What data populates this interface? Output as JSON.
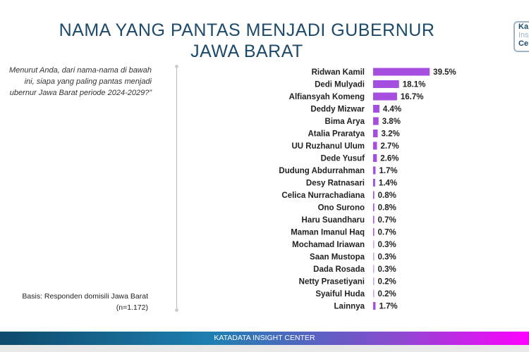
{
  "title_line1": "NAMA YANG PANTAS MENJADI GUBERNUR",
  "title_line2": "JAWA BARAT",
  "logo": {
    "line1": "Ka",
    "line2": "Ins",
    "line3": "Ce"
  },
  "question": {
    "line1": "Menurut Anda, dari nama-nama di bawah",
    "line2": "ini, siapa yang paling pantas menjadi",
    "line3": "ubernur Jawa Barat periode 2024-2029?”"
  },
  "basis": {
    "line1": "Basis: Responden domisili Jawa Barat",
    "line2": "(n=1.172)"
  },
  "footer": "KATADATA INSIGHT CENTER",
  "chart_data": {
    "type": "bar",
    "orientation": "horizontal",
    "bar_color": "#a64ee0",
    "categories": [
      "Ridwan Kamil",
      "Dedi Mulyadi",
      "Alfiansyah Komeng",
      "Deddy Mizwar",
      "Bima Arya",
      "Atalia Praratya",
      "UU Ruzhanul Ulum",
      "Dede Yusuf",
      "Dudung Abdurrahman",
      "Desy Ratnasari",
      "Celica Nurrachadiana",
      "Ono Surono",
      "Haru Suandharu",
      "Maman Imanul Haq",
      "Mochamad Iriawan",
      "Saan Mustopa",
      "Dada Rosada",
      "Netty Prasetiyani",
      "Syaiful Huda",
      "Lainnya"
    ],
    "values": [
      39.5,
      18.1,
      16.7,
      4.4,
      3.8,
      3.2,
      2.7,
      2.6,
      1.7,
      1.4,
      0.8,
      0.8,
      0.7,
      0.7,
      0.3,
      0.3,
      0.3,
      0.2,
      0.2,
      1.7
    ],
    "labels": [
      "39.5%",
      "18.1%",
      "16.7%",
      "4.4%",
      "3.8%",
      "3.2%",
      "2.7%",
      "2.6%",
      "1.7%",
      "1.4%",
      "0.8%",
      "0.8%",
      "0.7%",
      "0.7%",
      "0.3%",
      "0.3%",
      "0.3%",
      "0.2%",
      "0.2%",
      "1.7%"
    ],
    "unit": "%"
  }
}
